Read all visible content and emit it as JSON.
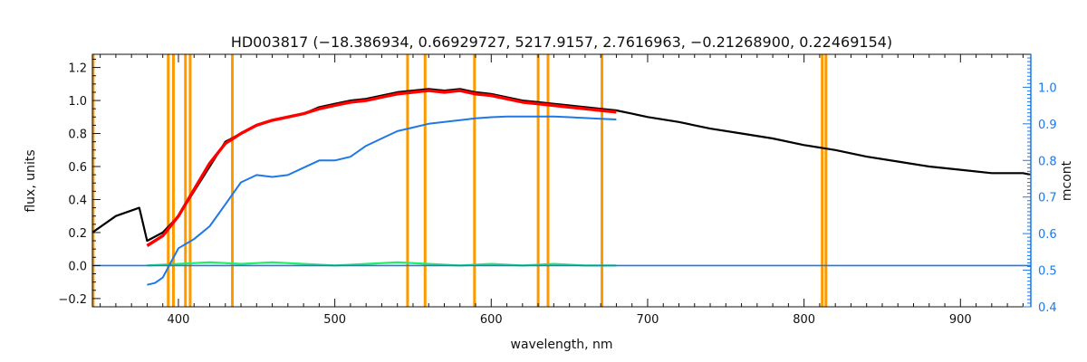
{
  "chart_data": {
    "type": "line",
    "title": "HD003817    (−18.386934, 0.66929727, 5217.9157, 2.7616963, −0.21268900, 0.22469154)",
    "xlabel": "wavelength, nm",
    "ylabel": "flux, units",
    "y2label": "mcont",
    "xlim": [
      345,
      945
    ],
    "ylim": [
      -0.25,
      1.28
    ],
    "y2lim": [
      0.4,
      1.09
    ],
    "x_ticks": [
      400,
      500,
      600,
      700,
      800,
      900
    ],
    "y_ticks": [
      -0.2,
      0.0,
      0.2,
      0.4,
      0.6,
      0.8,
      1.0,
      1.2
    ],
    "y_tick_labels": [
      "−0.2",
      "0.0",
      "0.2",
      "0.4",
      "0.6",
      "0.8",
      "1.0",
      "1.2"
    ],
    "y2_ticks": [
      0.4,
      0.5,
      0.6,
      0.7,
      0.8,
      0.9,
      1.0
    ],
    "y2_tick_labels": [
      "0.4",
      "0.5",
      "0.6",
      "0.7",
      "0.8",
      "0.9",
      "1.0"
    ],
    "masked_lines_nm": [
      345.5,
      393.5,
      396.8,
      404.5,
      407.5,
      434.5,
      546.5,
      557.7,
      589.3,
      630.0,
      636.3,
      670.8,
      811.6,
      814.0
    ],
    "colors": {
      "observed": "#000000",
      "model": "#ff0000",
      "residual": "#22ee66",
      "continuum": "#1e78e6",
      "mask": "#ff9900",
      "right_axis": "#1e78e6"
    },
    "series": [
      {
        "key": "observed",
        "x": [
          345,
          360,
          375,
          380,
          390,
          400,
          410,
          420,
          430,
          440,
          450,
          460,
          470,
          480,
          490,
          500,
          510,
          520,
          530,
          540,
          550,
          560,
          570,
          580,
          590,
          600,
          610,
          620,
          630,
          640,
          650,
          660,
          670,
          680,
          690,
          700,
          720,
          740,
          760,
          780,
          800,
          820,
          840,
          860,
          880,
          900,
          920,
          940,
          945
        ],
        "y": [
          0.2,
          0.3,
          0.35,
          0.15,
          0.2,
          0.3,
          0.45,
          0.6,
          0.75,
          0.8,
          0.85,
          0.88,
          0.9,
          0.92,
          0.96,
          0.98,
          1.0,
          1.01,
          1.03,
          1.05,
          1.06,
          1.07,
          1.06,
          1.07,
          1.05,
          1.04,
          1.02,
          1.0,
          0.99,
          0.98,
          0.97,
          0.96,
          0.95,
          0.94,
          0.92,
          0.9,
          0.87,
          0.83,
          0.8,
          0.77,
          0.73,
          0.7,
          0.66,
          0.63,
          0.6,
          0.58,
          0.56,
          0.56,
          0.55
        ]
      },
      {
        "key": "model",
        "x": [
          380,
          390,
          400,
          410,
          420,
          430,
          440,
          450,
          460,
          470,
          480,
          490,
          500,
          510,
          520,
          530,
          540,
          550,
          560,
          570,
          580,
          590,
          600,
          610,
          620,
          630,
          640,
          650,
          660,
          670,
          680
        ],
        "y": [
          0.12,
          0.18,
          0.3,
          0.46,
          0.62,
          0.74,
          0.8,
          0.85,
          0.88,
          0.9,
          0.92,
          0.95,
          0.97,
          0.99,
          1.0,
          1.02,
          1.04,
          1.05,
          1.06,
          1.05,
          1.06,
          1.04,
          1.03,
          1.01,
          0.99,
          0.98,
          0.97,
          0.96,
          0.95,
          0.94,
          0.93
        ]
      },
      {
        "key": "residual",
        "x": [
          380,
          400,
          420,
          440,
          460,
          480,
          500,
          520,
          540,
          560,
          580,
          600,
          620,
          640,
          660,
          680
        ],
        "y": [
          0.0,
          0.01,
          0.02,
          0.01,
          0.02,
          0.01,
          0.0,
          0.01,
          0.02,
          0.01,
          0.0,
          0.01,
          0.0,
          0.01,
          0.0,
          0.0
        ]
      },
      {
        "key": "continuum",
        "axis": "right",
        "x": [
          380,
          385,
          390,
          395,
          400,
          410,
          420,
          430,
          440,
          450,
          460,
          470,
          480,
          490,
          500,
          510,
          520,
          530,
          540,
          550,
          560,
          570,
          580,
          590,
          600,
          610,
          620,
          630,
          640,
          650,
          660,
          670,
          680
        ],
        "y": [
          0.46,
          0.465,
          0.48,
          0.52,
          0.56,
          0.585,
          0.62,
          0.68,
          0.74,
          0.76,
          0.755,
          0.76,
          0.78,
          0.8,
          0.8,
          0.81,
          0.84,
          0.86,
          0.88,
          0.89,
          0.9,
          0.905,
          0.91,
          0.915,
          0.918,
          0.92,
          0.92,
          0.92,
          0.92,
          0.918,
          0.916,
          0.914,
          0.912
        ]
      },
      {
        "key": "continuum_flat",
        "axis": "left",
        "x": [
          345,
          380,
          680,
          945
        ],
        "y": [
          0.0,
          0.0,
          0.0,
          0.0
        ]
      }
    ]
  }
}
